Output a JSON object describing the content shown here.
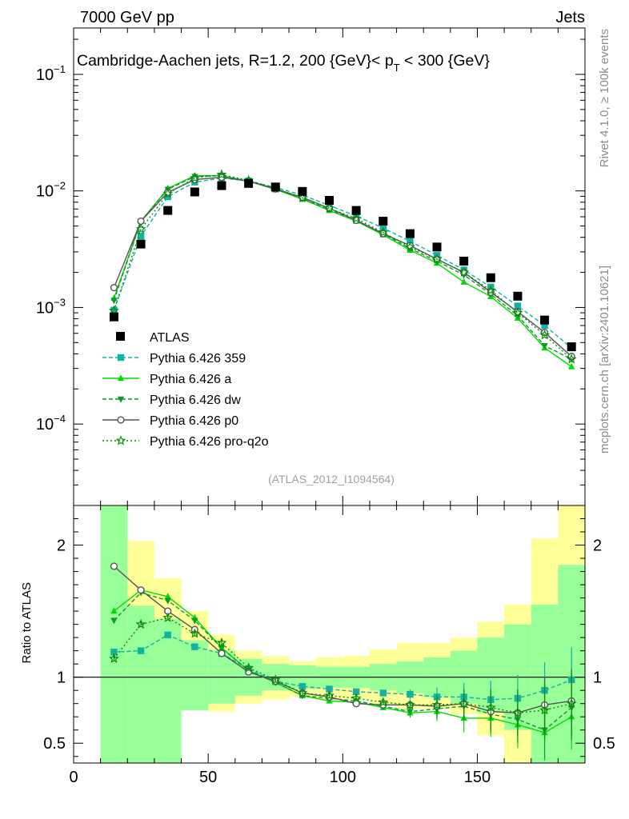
{
  "header": {
    "left": "7000 GeV pp",
    "right": "Jets"
  },
  "side_text": {
    "rivet": "Rivet 4.1.0, ≥ 100k events",
    "mcplots": "mcplots.cern.ch [arXiv:2401.10621]"
  },
  "chart_data": {
    "type": "line",
    "title": "Cambridge-Aachen jets, R=1.2,  200 {GeV}< p_T < 300 {GeV}",
    "title_parts": {
      "prefix": "Cambridge-Aachen jets, R=1.2,  200 {GeV}< p",
      "sub": "T",
      "suffix": " < 300 {GeV}"
    },
    "analysis_id": "(ATLAS_2012_I1094564)",
    "x": [
      15,
      25,
      35,
      45,
      55,
      65,
      75,
      85,
      95,
      105,
      115,
      125,
      135,
      145,
      155,
      165,
      175,
      185
    ],
    "xlim": [
      0,
      190
    ],
    "x_ticks": [
      0,
      50,
      100,
      150
    ],
    "x_tick_labels": [
      "0",
      "50",
      "100",
      "150"
    ],
    "main_panel": {
      "yscale": "log",
      "ylim": [
        2e-05,
        0.25
      ],
      "y_ticks": [
        0.1,
        0.01,
        0.001,
        0.0001
      ],
      "y_tick_labels": [
        {
          "base": "10",
          "exp": "−1"
        },
        {
          "base": "10",
          "exp": "−2"
        },
        {
          "base": "10",
          "exp": "−3"
        },
        {
          "base": "10",
          "exp": "−4"
        }
      ],
      "data": {
        "name": "ATLAS",
        "values": [
          0.00083,
          0.0035,
          0.0068,
          0.0098,
          0.0111,
          0.0116,
          0.0108,
          0.0099,
          0.0083,
          0.0068,
          0.0055,
          0.0043,
          0.0033,
          0.0025,
          0.0018,
          0.00125,
          0.00078,
          0.00046
        ]
      },
      "series": [
        {
          "name": "Pythia 6.426 359",
          "color": "#11b2a2",
          "dash": "5,3",
          "marker": "square",
          "values": [
            0.00095,
            0.0041,
            0.0089,
            0.0119,
            0.0129,
            0.0122,
            0.0107,
            0.0092,
            0.0075,
            0.0061,
            0.0048,
            0.0037,
            0.0028,
            0.0021,
            0.0015,
            0.00103,
            0.0007,
            0.00045
          ]
        },
        {
          "name": "Pythia 6.426 a",
          "color": "#00dc00",
          "dash": "",
          "marker": "triangle-up",
          "values": [
            0.0012,
            0.0055,
            0.0105,
            0.0135,
            0.0135,
            0.0121,
            0.0103,
            0.0085,
            0.0068,
            0.0055,
            0.0042,
            0.0031,
            0.0024,
            0.00165,
            0.00124,
            0.00081,
            0.00045,
            0.00031
          ]
        },
        {
          "name": "Pythia 6.426 dw",
          "color": "#0a9c2a",
          "dash": "5,3",
          "marker": "triangle-down",
          "values": [
            0.00115,
            0.0055,
            0.0103,
            0.0133,
            0.0135,
            0.0121,
            0.0104,
            0.0086,
            0.0069,
            0.0056,
            0.0043,
            0.0032,
            0.0025,
            0.0019,
            0.0013,
            0.00085,
            0.00047,
            0.00036
          ]
        },
        {
          "name": "Pythia 6.426 p0",
          "color": "#555555",
          "dash": "",
          "marker": "circle-open",
          "values": [
            0.00148,
            0.0055,
            0.0097,
            0.0125,
            0.0131,
            0.0121,
            0.0104,
            0.0088,
            0.0071,
            0.0056,
            0.0043,
            0.0034,
            0.0026,
            0.002,
            0.00135,
            0.00092,
            0.00061,
            0.00038
          ]
        },
        {
          "name": "Pythia 6.426 pro-q2o",
          "color": "#0a8c0a",
          "dash": "2,3",
          "marker": "star-open",
          "values": [
            0.00094,
            0.0047,
            0.0095,
            0.0129,
            0.0138,
            0.0123,
            0.0105,
            0.0087,
            0.0071,
            0.0058,
            0.0044,
            0.0033,
            0.0026,
            0.002,
            0.0014,
            0.0009,
            0.00058,
            0.00036
          ]
        }
      ]
    },
    "ratio_panel": {
      "ylabel": "Ratio to ATLAS",
      "ylim": [
        0.35,
        2.3
      ],
      "y_ticks": [
        0.5,
        1,
        2
      ],
      "y_tick_labels": [
        "0.5",
        "1",
        "2"
      ],
      "band_edges": [
        10,
        20,
        30,
        40,
        50,
        60,
        70,
        80,
        90,
        100,
        110,
        120,
        130,
        140,
        150,
        160,
        170,
        180,
        190
      ],
      "band_inner": [
        [
          0.35,
          2.3
        ],
        [
          0.35,
          1.54
        ],
        [
          0.35,
          1.44
        ],
        [
          0.75,
          1.28
        ],
        [
          0.8,
          1.2
        ],
        [
          0.86,
          1.14
        ],
        [
          0.9,
          1.1
        ],
        [
          0.91,
          1.09
        ],
        [
          0.92,
          1.08
        ],
        [
          0.92,
          1.08
        ],
        [
          0.9,
          1.1
        ],
        [
          0.88,
          1.12
        ],
        [
          0.85,
          1.15
        ],
        [
          0.8,
          1.2
        ],
        [
          0.73,
          1.3
        ],
        [
          0.6,
          1.4
        ],
        [
          0.35,
          1.55
        ],
        [
          0.35,
          1.85
        ]
      ],
      "band_outer": [
        [
          0.35,
          2.3
        ],
        [
          0.48,
          2.03
        ],
        [
          0.52,
          1.75
        ],
        [
          0.76,
          1.5
        ],
        [
          0.74,
          1.32
        ],
        [
          0.8,
          1.2
        ],
        [
          0.83,
          1.16
        ],
        [
          0.85,
          1.12
        ],
        [
          0.83,
          1.15
        ],
        [
          0.83,
          1.16
        ],
        [
          0.79,
          1.21
        ],
        [
          0.76,
          1.26
        ],
        [
          0.76,
          1.26
        ],
        [
          0.72,
          1.3
        ],
        [
          0.56,
          1.42
        ],
        [
          0.35,
          1.55
        ],
        [
          0.35,
          2.05
        ],
        [
          0.35,
          2.3
        ]
      ],
      "series_values": [
        [
          1.19,
          1.2,
          1.32,
          1.23,
          1.18,
          1.06,
          0.97,
          0.93,
          0.91,
          0.89,
          0.88,
          0.87,
          0.85,
          0.85,
          0.83,
          0.84,
          0.9,
          0.98
        ],
        [
          1.5,
          1.66,
          1.61,
          1.45,
          1.22,
          1.05,
          0.96,
          0.86,
          0.82,
          0.81,
          0.77,
          0.73,
          0.74,
          0.69,
          0.69,
          0.64,
          0.58,
          0.7
        ],
        [
          1.43,
          1.64,
          1.58,
          1.43,
          1.22,
          1.05,
          0.96,
          0.86,
          0.84,
          0.82,
          0.78,
          0.74,
          0.76,
          0.78,
          0.72,
          0.68,
          0.6,
          0.77
        ],
        [
          1.84,
          1.66,
          1.5,
          1.36,
          1.18,
          1.04,
          0.97,
          0.88,
          0.85,
          0.8,
          0.79,
          0.79,
          0.78,
          0.8,
          0.74,
          0.73,
          0.79,
          0.82
        ],
        [
          1.14,
          1.4,
          1.45,
          1.33,
          1.26,
          1.07,
          0.98,
          0.88,
          0.86,
          0.84,
          0.81,
          0.79,
          0.79,
          0.8,
          0.77,
          0.73,
          0.75,
          0.8
        ]
      ]
    }
  }
}
